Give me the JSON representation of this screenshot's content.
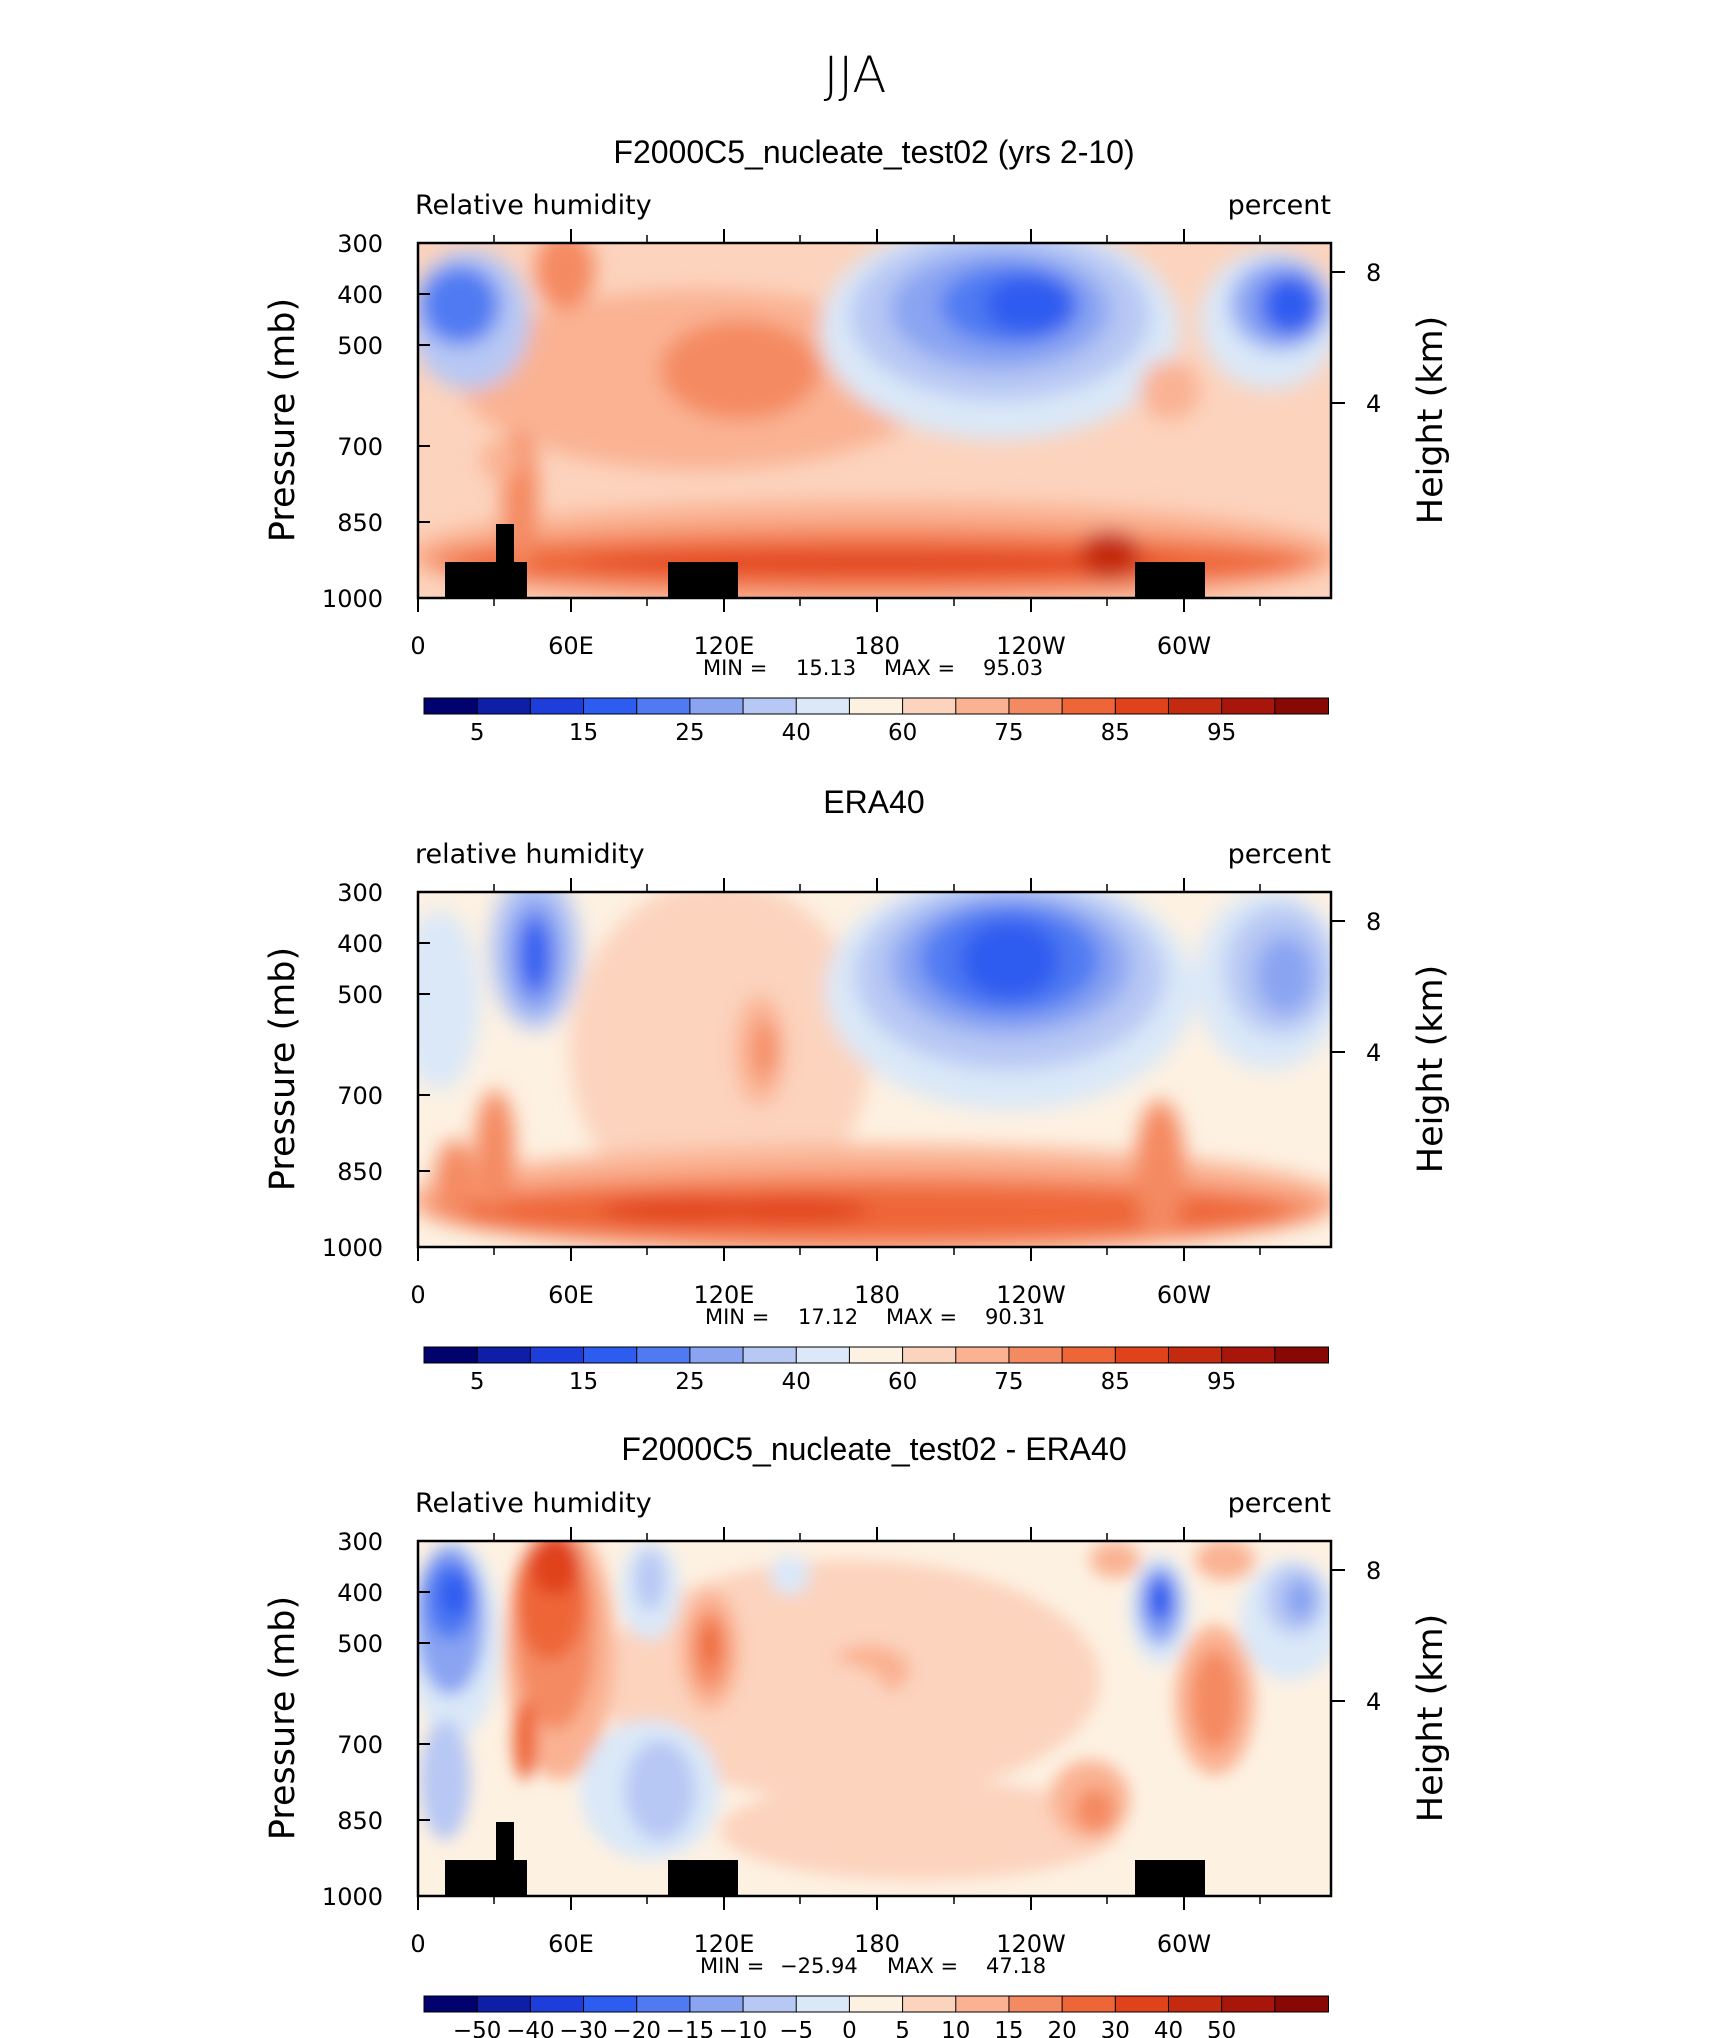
{
  "figure": {
    "title": "JJA"
  },
  "colors": {
    "abs_palette": [
      "#02026e",
      "#0e1ea6",
      "#1e3edc",
      "#2d5cf0",
      "#4f7af2",
      "#8aa4f2",
      "#b7c8f4",
      "#dae8f8",
      "#fdf1e2",
      "#fcd3bd",
      "#fab293",
      "#f48a62",
      "#ee6637",
      "#e0421c",
      "#c42a10",
      "#a8150a",
      "#880806"
    ],
    "diff_palette": [
      "#02026e",
      "#0e1ea6",
      "#1e3edc",
      "#2d5cf0",
      "#4f7af2",
      "#8aa4f2",
      "#b7c8f4",
      "#dae8f8",
      "#fdf1e2",
      "#fcd3bd",
      "#fab293",
      "#f48a62",
      "#ee6637",
      "#e0421c",
      "#c42a10",
      "#a8150a",
      "#880806"
    ],
    "topography": "#000000"
  },
  "chart_data": [
    {
      "type": "heatmap",
      "title": "F2000C5_nucleate_test02 (yrs 2-10)",
      "left_label": "Relative humidity",
      "right_label": "percent",
      "ylabel": "Pressure (mb)",
      "ylabel_right": "Height (km)",
      "y_ticks": [
        "300",
        "400",
        "500",
        "700",
        "850",
        "1000"
      ],
      "y_right_ticks": [
        "8",
        "4"
      ],
      "x_ticks": [
        "0",
        "60E",
        "120E",
        "180",
        "120W",
        "60W"
      ],
      "stats": {
        "min_label": "MIN =",
        "min": "15.13",
        "max_label": "MAX =",
        "max": "95.03"
      },
      "colorbar_labels": [
        "5",
        "15",
        "25",
        "40",
        "60",
        "75",
        "85",
        "95"
      ],
      "has_topography": true
    },
    {
      "type": "heatmap",
      "title": "ERA40",
      "left_label": "relative humidity",
      "right_label": "percent",
      "ylabel": "Pressure (mb)",
      "ylabel_right": "Height (km)",
      "y_ticks": [
        "300",
        "400",
        "500",
        "700",
        "850",
        "1000"
      ],
      "y_right_ticks": [
        "8",
        "4"
      ],
      "x_ticks": [
        "0",
        "60E",
        "120E",
        "180",
        "120W",
        "60W"
      ],
      "stats": {
        "min_label": "MIN =",
        "min": "17.12",
        "max_label": "MAX =",
        "max": "90.31"
      },
      "colorbar_labels": [
        "5",
        "15",
        "25",
        "40",
        "60",
        "75",
        "85",
        "95"
      ],
      "has_topography": false
    },
    {
      "type": "heatmap",
      "title": "F2000C5_nucleate_test02 - ERA40",
      "left_label": "Relative humidity",
      "right_label": "percent",
      "ylabel": "Pressure (mb)",
      "ylabel_right": "Height (km)",
      "y_ticks": [
        "300",
        "400",
        "500",
        "700",
        "850",
        "1000"
      ],
      "y_right_ticks": [
        "8",
        "4"
      ],
      "x_ticks": [
        "0",
        "60E",
        "120E",
        "180",
        "120W",
        "60W"
      ],
      "stats": {
        "min_label": "MIN =",
        "min": "−25.94",
        "max_label": "MAX =",
        "max": "47.18"
      },
      "colorbar_labels": [
        "−50",
        "−40",
        "−30",
        "−20",
        "−15",
        "−10",
        "−5",
        "0",
        "5",
        "10",
        "15",
        "20",
        "30",
        "40",
        "50"
      ],
      "has_topography": true
    }
  ]
}
